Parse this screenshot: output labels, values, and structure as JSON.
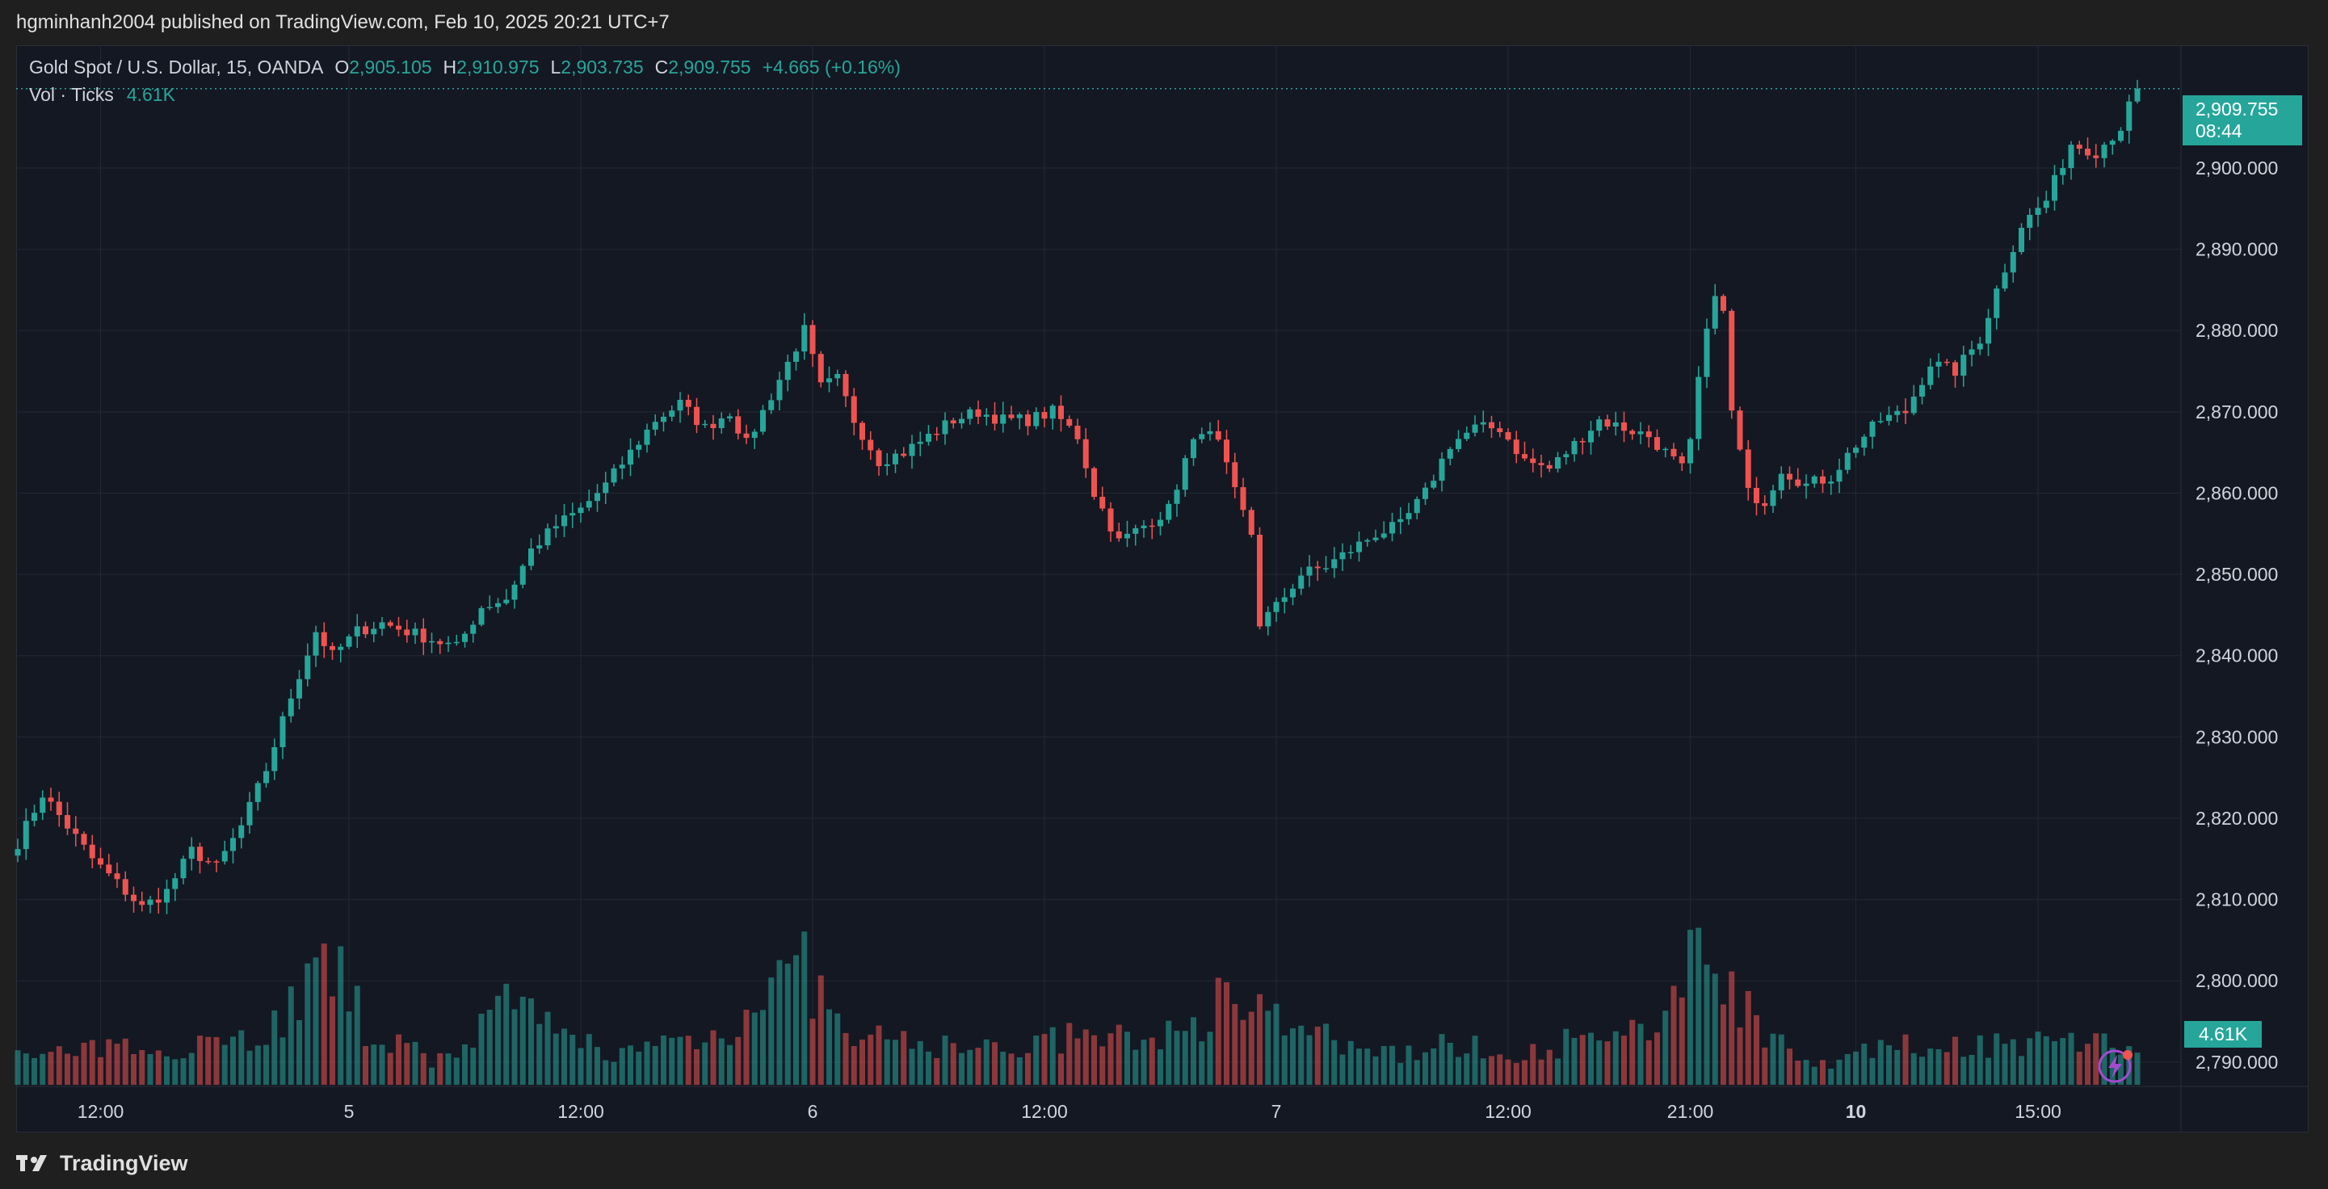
{
  "header": {
    "published": "hgminhanh2004 published on TradingView.com, Feb 10, 2025 20:21 UTC+7"
  },
  "legend": {
    "symbol": "Gold Spot / U.S. Dollar, 15, OANDA",
    "o_label": "O",
    "o_value": "2,905.105",
    "h_label": "H",
    "h_value": "2,910.975",
    "l_label": "L",
    "l_value": "2,903.735",
    "c_label": "C",
    "c_value": "2,909.755",
    "change": "+4.665 (+0.16%)",
    "vol_label": "Vol · Ticks",
    "vol_value": "4.61K"
  },
  "price_tag": {
    "price": "2,909.755",
    "countdown": "08:44"
  },
  "vol_tag": "4.61K",
  "footer": {
    "brand": "TradingView"
  },
  "colors": {
    "up": "#26a69a",
    "down": "#ef5350",
    "background": "#141823",
    "grid": "#232733"
  },
  "chart_data": {
    "type": "candlestick",
    "interval": "15",
    "ylim": [
      2787,
      2915
    ],
    "y_ticks": [
      "2,790.000",
      "2,800.000",
      "2,810.000",
      "2,820.000",
      "2,830.000",
      "2,840.000",
      "2,850.000",
      "2,860.000",
      "2,870.000",
      "2,880.000",
      "2,890.000",
      "2,900.000"
    ],
    "y_tick_values": [
      2790,
      2800,
      2810,
      2820,
      2830,
      2840,
      2850,
      2860,
      2870,
      2880,
      2890,
      2900
    ],
    "x_ticks": [
      {
        "label": "12:00",
        "bar": 10,
        "bold": false
      },
      {
        "label": "5",
        "bar": 40,
        "bold": false
      },
      {
        "label": "12:00",
        "bar": 68,
        "bold": false
      },
      {
        "label": "6",
        "bar": 96,
        "bold": false
      },
      {
        "label": "12:00",
        "bar": 124,
        "bold": false
      },
      {
        "label": "7",
        "bar": 152,
        "bold": false
      },
      {
        "label": "12:00",
        "bar": 180,
        "bold": false
      },
      {
        "label": "21:00",
        "bar": 202,
        "bold": false
      },
      {
        "label": "10",
        "bar": 222,
        "bold": true
      },
      {
        "label": "15:00",
        "bar": 244,
        "bold": false
      }
    ],
    "close_path": [
      [
        0,
        2817
      ],
      [
        3,
        2823
      ],
      [
        6,
        2819
      ],
      [
        9,
        2815
      ],
      [
        12,
        2812
      ],
      [
        15,
        2809
      ],
      [
        18,
        2811
      ],
      [
        21,
        2816
      ],
      [
        24,
        2814
      ],
      [
        27,
        2819
      ],
      [
        30,
        2826
      ],
      [
        33,
        2835
      ],
      [
        36,
        2843
      ],
      [
        38,
        2840
      ],
      [
        41,
        2843
      ],
      [
        44,
        2844
      ],
      [
        47,
        2843
      ],
      [
        50,
        2842
      ],
      [
        53,
        2841
      ],
      [
        56,
        2846
      ],
      [
        59,
        2847
      ],
      [
        62,
        2853
      ],
      [
        65,
        2856
      ],
      [
        68,
        2858
      ],
      [
        71,
        2861
      ],
      [
        74,
        2865
      ],
      [
        77,
        2869
      ],
      [
        80,
        2871
      ],
      [
        83,
        2868
      ],
      [
        86,
        2870
      ],
      [
        88,
        2866
      ],
      [
        90,
        2870
      ],
      [
        93,
        2876
      ],
      [
        95,
        2880
      ],
      [
        97,
        2873
      ],
      [
        99,
        2874
      ],
      [
        101,
        2869
      ],
      [
        104,
        2864
      ],
      [
        107,
        2865
      ],
      [
        110,
        2867
      ],
      [
        113,
        2869
      ],
      [
        116,
        2870
      ],
      [
        119,
        2869
      ],
      [
        122,
        2869
      ],
      [
        125,
        2870
      ],
      [
        128,
        2867
      ],
      [
        130,
        2860
      ],
      [
        133,
        2854
      ],
      [
        136,
        2856
      ],
      [
        139,
        2858
      ],
      [
        141,
        2864
      ],
      [
        143,
        2868
      ],
      [
        145,
        2866
      ],
      [
        147,
        2860
      ],
      [
        149,
        2855
      ],
      [
        150,
        2844
      ],
      [
        152,
        2846
      ],
      [
        155,
        2850
      ],
      [
        158,
        2851
      ],
      [
        161,
        2853
      ],
      [
        164,
        2855
      ],
      [
        167,
        2856
      ],
      [
        170,
        2860
      ],
      [
        173,
        2866
      ],
      [
        176,
        2868
      ],
      [
        179,
        2868
      ],
      [
        182,
        2864
      ],
      [
        185,
        2863
      ],
      [
        188,
        2866
      ],
      [
        191,
        2869
      ],
      [
        194,
        2868
      ],
      [
        197,
        2867
      ],
      [
        199,
        2865
      ],
      [
        201,
        2863
      ],
      [
        202,
        2866
      ],
      [
        203,
        2874
      ],
      [
        205,
        2885
      ],
      [
        206,
        2882
      ],
      [
        207,
        2870
      ],
      [
        209,
        2860
      ],
      [
        211,
        2859
      ],
      [
        213,
        2863
      ],
      [
        216,
        2861
      ],
      [
        219,
        2862
      ],
      [
        222,
        2866
      ],
      [
        225,
        2869
      ],
      [
        228,
        2870
      ],
      [
        231,
        2876
      ],
      [
        234,
        2875
      ],
      [
        237,
        2879
      ],
      [
        239,
        2885
      ],
      [
        242,
        2893
      ],
      [
        245,
        2896
      ],
      [
        248,
        2903
      ],
      [
        251,
        2902
      ],
      [
        254,
        2905
      ],
      [
        256,
        2910
      ]
    ],
    "volume_path": [
      [
        0,
        1.2
      ],
      [
        10,
        1.5
      ],
      [
        20,
        1.8
      ],
      [
        30,
        2.2
      ],
      [
        34,
        4.0
      ],
      [
        38,
        5.2
      ],
      [
        42,
        2.6
      ],
      [
        50,
        1.0
      ],
      [
        56,
        2.5
      ],
      [
        60,
        3.5
      ],
      [
        66,
        2.0
      ],
      [
        74,
        1.4
      ],
      [
        80,
        2.0
      ],
      [
        85,
        2.2
      ],
      [
        90,
        4.2
      ],
      [
        95,
        5.0
      ],
      [
        100,
        2.0
      ],
      [
        110,
        1.8
      ],
      [
        118,
        1.5
      ],
      [
        126,
        2.0
      ],
      [
        134,
        2.0
      ],
      [
        142,
        2.4
      ],
      [
        146,
        4.0
      ],
      [
        150,
        5.0
      ],
      [
        152,
        3.0
      ],
      [
        158,
        2.0
      ],
      [
        164,
        1.2
      ],
      [
        172,
        1.8
      ],
      [
        180,
        1.4
      ],
      [
        190,
        2.0
      ],
      [
        198,
        2.2
      ],
      [
        202,
        6.5
      ],
      [
        206,
        5.0
      ],
      [
        210,
        2.6
      ],
      [
        218,
        1.0
      ],
      [
        226,
        1.6
      ],
      [
        234,
        1.8
      ],
      [
        242,
        1.8
      ],
      [
        250,
        2.0
      ],
      [
        256,
        1.5
      ]
    ]
  }
}
